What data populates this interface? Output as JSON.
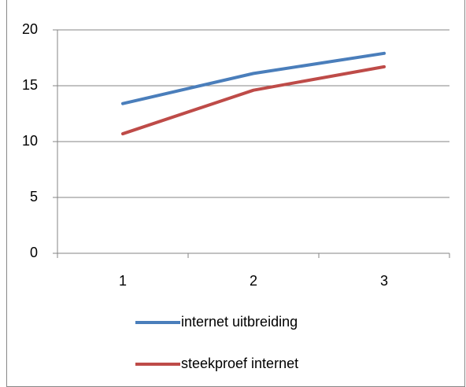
{
  "chart_data": {
    "type": "line",
    "categories": [
      "1",
      "2",
      "3"
    ],
    "series": [
      {
        "name": "internet uitbreiding",
        "color": "#4a7ebb",
        "values": [
          13.4,
          16.1,
          17.9
        ]
      },
      {
        "name": "steekproef internet",
        "color": "#be4b48",
        "values": [
          10.7,
          14.6,
          16.7
        ]
      }
    ],
    "ylim": [
      0,
      20
    ],
    "yticks": [
      0,
      5,
      10,
      15,
      20
    ],
    "grid": true,
    "legend": "bottom"
  }
}
